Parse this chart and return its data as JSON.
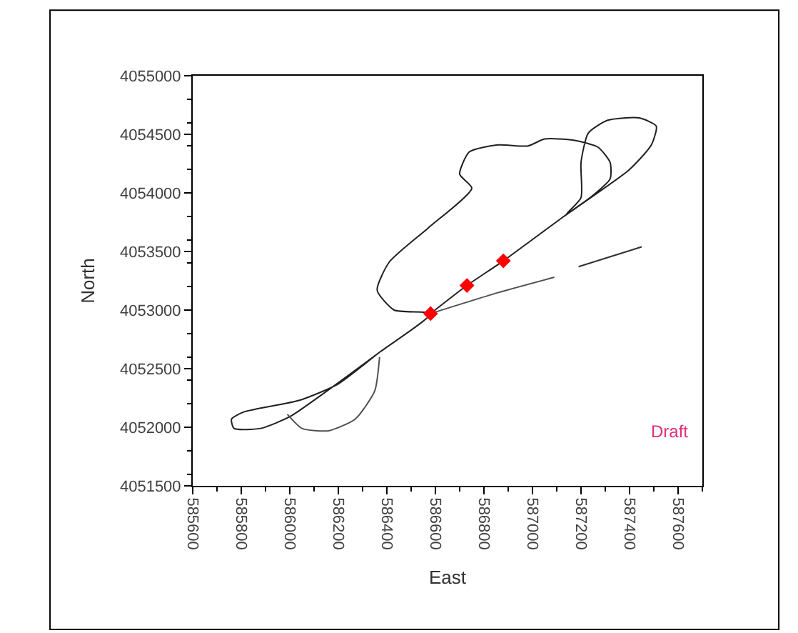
{
  "chart_data": {
    "type": "line",
    "xlabel": "East",
    "ylabel": "North",
    "xlim": [
      585600,
      587700
    ],
    "xticks": [
      585600,
      585800,
      586000,
      586200,
      586400,
      586600,
      586800,
      587000,
      587200,
      587400,
      587600
    ],
    "ylim": [
      4051500,
      4055000
    ],
    "yticks": [
      4051500,
      4052000,
      4052500,
      4053000,
      4053500,
      4054000,
      4054500,
      4055000
    ],
    "annotations": [
      "Draft"
    ],
    "series": [
      {
        "color": "#303030",
        "x": [
          587450,
          587190
        ],
        "values": [
          4053540,
          4053370
        ]
      },
      {
        "color": "#505050",
        "x": [
          587090,
          586860,
          586580
        ],
        "values": [
          4053280,
          4053150,
          4052970
        ]
      },
      {
        "color": "#202020",
        "x": [
          586580,
          586730,
          586880,
          587130,
          587400,
          587490,
          587510,
          587440,
          587310,
          587230,
          587200,
          587200,
          587140,
          587250,
          587320,
          587320,
          587270,
          587170,
          587050,
          586980,
          586860,
          586740,
          586700,
          586750,
          586570,
          586410,
          586360,
          586430,
          586580,
          586370,
          586200,
          586040,
          585810,
          585760,
          585770,
          585880,
          586000,
          586180,
          586370
        ],
        "values": [
          4052970,
          4053210,
          4053420,
          4053800,
          4054200,
          4054410,
          4054570,
          4054640,
          4054620,
          4054510,
          4054260,
          4053960,
          4053820,
          4053980,
          4054120,
          4054260,
          4054390,
          4054450,
          4054460,
          4054400,
          4054410,
          4054350,
          4054160,
          4054040,
          4053700,
          4053410,
          4053170,
          4053000,
          4052970,
          4052640,
          4052370,
          4052230,
          4052130,
          4052070,
          4051990,
          4051990,
          4052090,
          4052350,
          4052640
        ]
      },
      {
        "color": "#505050",
        "x": [
          585990,
          586050,
          586160,
          586270,
          586350,
          586370
        ],
        "values": [
          4052110,
          4051990,
          4051970,
          4052070,
          4052310,
          4052600
        ]
      },
      {
        "type": "scatter",
        "marker": "diamond",
        "color": "#ff0000",
        "x": [
          586580,
          586730,
          586880
        ],
        "values": [
          4052970,
          4053210,
          4053420
        ]
      }
    ]
  }
}
